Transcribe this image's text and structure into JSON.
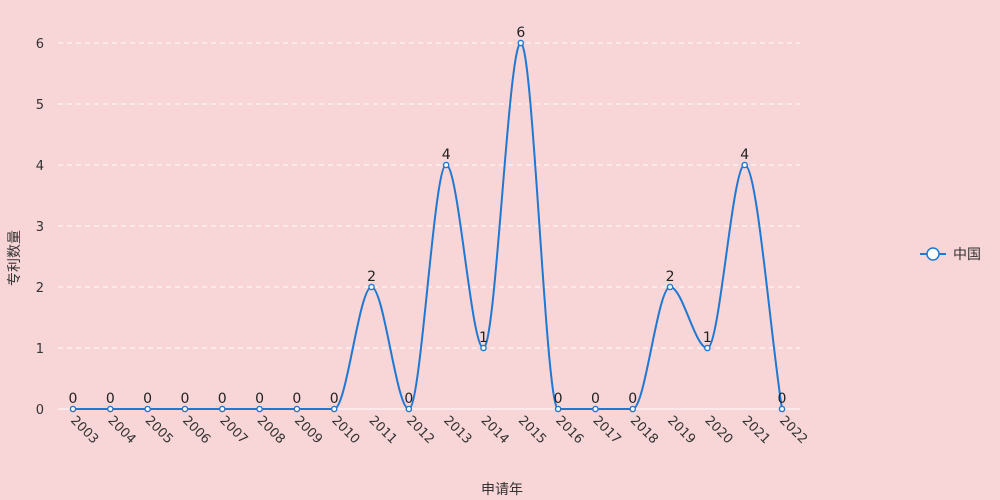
{
  "chart_data": {
    "type": "line",
    "smooth": true,
    "xlabel": "申请年",
    "ylabel": "专利数量",
    "ylim": [
      0,
      6
    ],
    "yticks": [
      0,
      1,
      2,
      3,
      4,
      5,
      6
    ],
    "grid": "horizontal dashed",
    "legend_position": "right",
    "categories": [
      "2003",
      "2004",
      "2005",
      "2006",
      "2007",
      "2008",
      "2009",
      "2010",
      "2011",
      "2012",
      "2013",
      "2014",
      "2015",
      "2016",
      "2017",
      "2018",
      "2019",
      "2020",
      "2021",
      "2022"
    ],
    "series": [
      {
        "name": "中国",
        "values": [
          0,
          0,
          0,
          0,
          0,
          0,
          0,
          0,
          2,
          0,
          4,
          1,
          6,
          0,
          0,
          0,
          2,
          1,
          4,
          0
        ]
      }
    ]
  },
  "colors": {
    "background": "#f8d5d7",
    "series_line": "#1f78d1",
    "grid": "#ffffff"
  },
  "legend": {
    "icon": "circle-marker-icon"
  }
}
